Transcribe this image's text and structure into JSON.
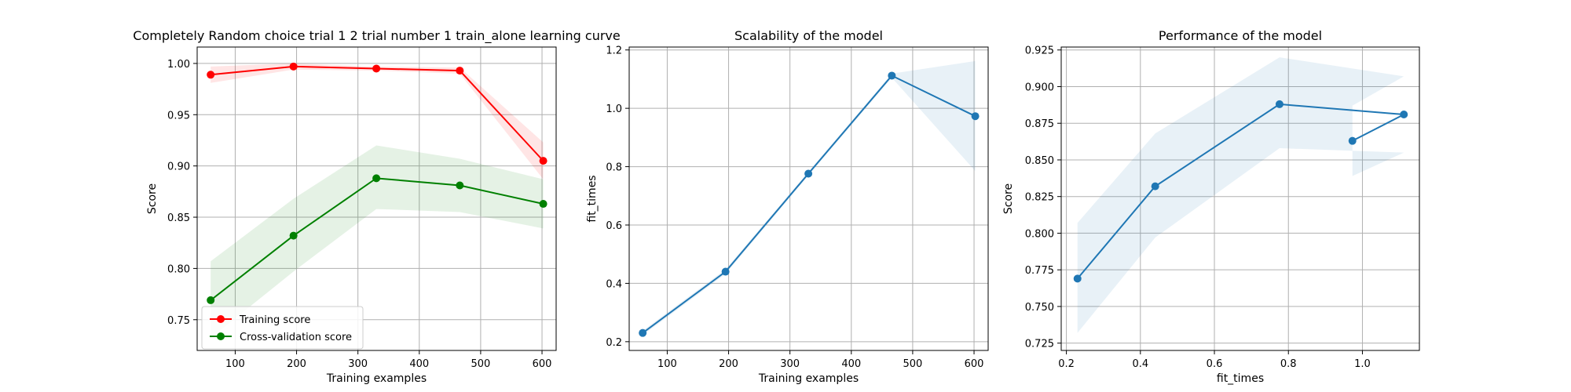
{
  "chart_data": [
    {
      "type": "line",
      "title": "Completely Random choice trial 1 2 trial number 1 train_alone learning curve",
      "xlabel": "Training examples",
      "ylabel": "Score",
      "xlim": [
        38,
        623
      ],
      "ylim": [
        0.72,
        1.016
      ],
      "xticks": [
        100,
        200,
        300,
        400,
        500,
        600
      ],
      "yticks": [
        0.75,
        0.8,
        0.85,
        0.9,
        0.95,
        1.0
      ],
      "ytick_labels": [
        "0.75",
        "0.80",
        "0.85",
        "0.90",
        "0.95",
        "1.00"
      ],
      "grid": true,
      "legend_position": "lower-left",
      "x": [
        60,
        195,
        330,
        466,
        602
      ],
      "series": [
        {
          "name": "Training score",
          "color": "#ff0000",
          "band_color": "#ff0000",
          "values": [
            0.989,
            0.997,
            0.995,
            0.993,
            0.905
          ],
          "lower": [
            0.981,
            0.994,
            0.993,
            0.99,
            0.887
          ],
          "upper": [
            0.997,
            1.0,
            0.997,
            0.996,
            0.923
          ]
        },
        {
          "name": "Cross-validation score",
          "color": "#008000",
          "band_color": "#008000",
          "values": [
            0.769,
            0.832,
            0.888,
            0.881,
            0.863
          ],
          "lower": [
            0.732,
            0.797,
            0.858,
            0.855,
            0.839
          ],
          "upper": [
            0.807,
            0.868,
            0.92,
            0.907,
            0.887
          ]
        }
      ]
    },
    {
      "type": "line",
      "title": "Scalability of the model",
      "xlabel": "Training examples",
      "ylabel": "fit_times",
      "xlim": [
        38,
        623
      ],
      "ylim": [
        0.17,
        1.21
      ],
      "xticks": [
        100,
        200,
        300,
        400,
        500,
        600
      ],
      "yticks": [
        0.2,
        0.4,
        0.6,
        0.8,
        1.0,
        1.2
      ],
      "ytick_labels": [
        "0.2",
        "0.4",
        "0.6",
        "0.8",
        "1.0",
        "1.2"
      ],
      "grid": true,
      "x": [
        60,
        195,
        330,
        466,
        602
      ],
      "series": [
        {
          "color": "#1f77b4",
          "band_color": "#1f77b4",
          "values": [
            0.23,
            0.44,
            0.776,
            1.112,
            0.973
          ],
          "lower": [
            0.222,
            0.432,
            0.77,
            1.105,
            0.785
          ],
          "upper": [
            0.238,
            0.448,
            0.782,
            1.119,
            1.162
          ]
        }
      ]
    },
    {
      "type": "line",
      "title": "Performance of the model",
      "xlabel": "fit_times",
      "ylabel": "Score",
      "xlim": [
        0.186,
        1.154
      ],
      "ylim": [
        0.72,
        0.927
      ],
      "xticks": [
        0.2,
        0.4,
        0.6,
        0.8,
        1.0
      ],
      "xtick_labels": [
        "0.2",
        "0.4",
        "0.6",
        "0.8",
        "1.0"
      ],
      "yticks": [
        0.725,
        0.75,
        0.775,
        0.8,
        0.825,
        0.85,
        0.875,
        0.9,
        0.925
      ],
      "ytick_labels": [
        "0.725",
        "0.750",
        "0.775",
        "0.800",
        "0.825",
        "0.850",
        "0.875",
        "0.900",
        "0.925"
      ],
      "grid": true,
      "x": [
        0.23,
        0.44,
        0.776,
        1.112,
        0.973
      ],
      "series": [
        {
          "color": "#1f77b4",
          "band_color": "#1f77b4",
          "values": [
            0.769,
            0.832,
            0.888,
            0.881,
            0.863
          ],
          "lower": [
            0.732,
            0.797,
            0.858,
            0.855,
            0.839
          ],
          "upper": [
            0.807,
            0.868,
            0.92,
            0.907,
            0.887
          ]
        }
      ]
    }
  ]
}
